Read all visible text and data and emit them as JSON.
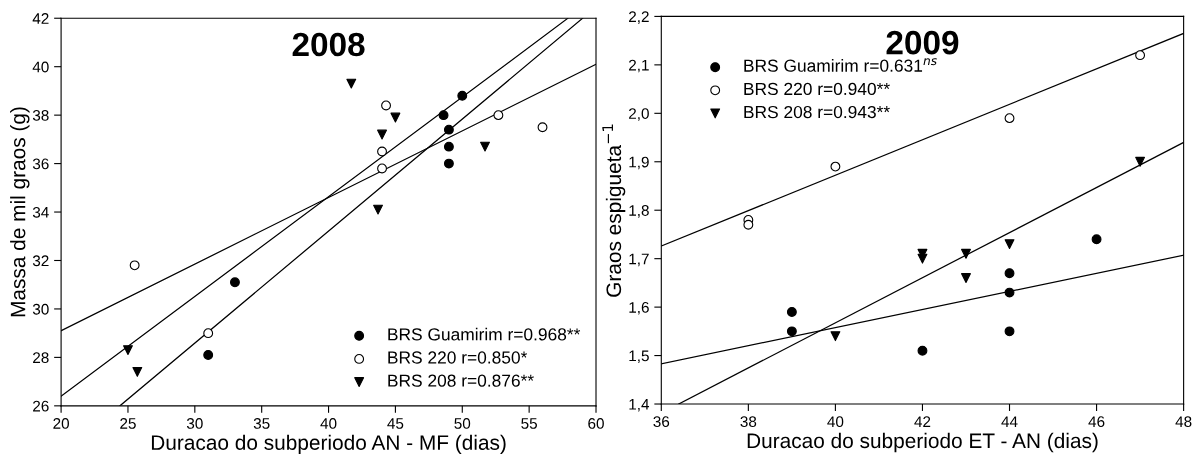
{
  "chart_data": [
    {
      "type": "scatter",
      "title": "2008",
      "xlabel": "Duracao do subperiodo AN - MF (dias)",
      "ylabel": "Massa de mil graos (g)",
      "xlim": [
        20,
        60
      ],
      "ylim": [
        26,
        42
      ],
      "xticks": [
        20,
        25,
        30,
        35,
        40,
        45,
        50,
        55,
        60
      ],
      "yticks": [
        26,
        28,
        30,
        32,
        34,
        36,
        38,
        40,
        42
      ],
      "grid": false,
      "legend": "bottom right",
      "series": [
        {
          "name": "BRS Guamirim r=0.968**",
          "color": "#000000",
          "marker": "circle",
          "x": [
            31,
            33,
            48.6,
            49,
            49,
            49,
            50
          ],
          "values": [
            28.1,
            31.1,
            38.0,
            37.4,
            36.7,
            36.0,
            38.8
          ]
        },
        {
          "name": "BRS 220 r=0.850*",
          "color": "#ffffff",
          "marker": "circle",
          "x": [
            25.5,
            31,
            44,
            44,
            44.3,
            52.7,
            56
          ],
          "values": [
            31.8,
            29.0,
            36.5,
            35.8,
            38.4,
            38.0,
            37.5
          ]
        },
        {
          "name": "BRS 208 r=0.876**",
          "color": "#000000",
          "marker": "triangle",
          "x": [
            25,
            25.7,
            41.7,
            43.7,
            44,
            45,
            51.7
          ],
          "values": [
            28.3,
            27.4,
            39.3,
            34.1,
            37.2,
            37.9,
            36.7
          ]
        },
        {
          "type": "line",
          "color": "#000000",
          "x": [
            20,
            60
          ],
          "values": [
            29.1,
            40.1
          ]
        },
        {
          "type": "line",
          "color": "#000000",
          "x": [
            20,
            57.9
          ],
          "values": [
            26.4,
            42
          ]
        },
        {
          "type": "line",
          "color": "#000000",
          "x": [
            24.4,
            59.0
          ],
          "values": [
            26,
            42
          ]
        }
      ]
    },
    {
      "type": "scatter",
      "title": "2009",
      "xlabel": "Duracao do subperiodo ET - AN (dias)",
      "ylabel": "Graos espigueta$^{−1}$",
      "xlim": [
        36,
        48
      ],
      "ylim": [
        1.4,
        2.2
      ],
      "xticks": [
        36,
        38,
        40,
        42,
        44,
        46,
        48
      ],
      "yticks": [
        {
          "value": 1.4,
          "label": "1,4"
        },
        {
          "value": 1.5,
          "label": "1,5"
        },
        {
          "value": 1.6,
          "label": "1,6"
        },
        {
          "value": 1.7,
          "label": "1,7"
        },
        {
          "value": 1.8,
          "label": "1,8"
        },
        {
          "value": 1.9,
          "label": "1,9"
        },
        {
          "value": 2.0,
          "label": "2,0"
        },
        {
          "value": 2.1,
          "label": "2,1"
        },
        {
          "value": 2.2,
          "label": "2,2"
        }
      ],
      "grid": false,
      "legend": "top left",
      "series": [
        {
          "name": "BRS Guamirim r=0.631$^{ns}$",
          "color": "#000000",
          "marker": "circle",
          "x": [
            39,
            39,
            42,
            44,
            44,
            44,
            46
          ],
          "values": [
            1.59,
            1.55,
            1.51,
            1.67,
            1.63,
            1.55,
            1.74
          ]
        },
        {
          "name": "BRS 220 r=0.940**",
          "color": "#ffffff",
          "marker": "circle",
          "x": [
            38,
            38,
            40,
            44,
            47
          ],
          "values": [
            1.78,
            1.77,
            1.89,
            1.99,
            2.12
          ]
        },
        {
          "name": "BRS 208 r=0.943**",
          "color": "#000000",
          "marker": "triangle",
          "x": [
            40,
            42,
            42,
            43,
            43,
            44,
            47
          ],
          "values": [
            1.54,
            1.71,
            1.7,
            1.71,
            1.66,
            1.73,
            1.9
          ]
        },
        {
          "type": "line",
          "color": "#000000",
          "x": [
            36,
            48
          ],
          "values": [
            1.726,
            2.165
          ]
        },
        {
          "type": "line",
          "color": "#000000",
          "x": [
            36,
            48
          ],
          "values": [
            1.483,
            1.707
          ]
        },
        {
          "type": "line",
          "color": "#000000",
          "x": [
            36.4,
            48
          ],
          "values": [
            1.4,
            1.94
          ]
        }
      ]
    }
  ]
}
